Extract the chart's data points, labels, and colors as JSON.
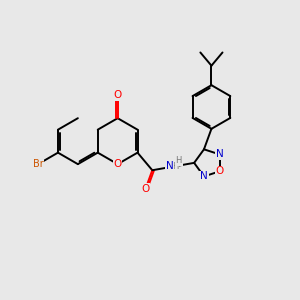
{
  "bg_color": "#e8e8e8",
  "bond_width": 1.4,
  "atom_colors": {
    "O": "#ff0000",
    "N": "#0000cd",
    "Br": "#cc5500",
    "H": "#777777",
    "C": "#000000"
  },
  "figsize": [
    3.0,
    3.0
  ],
  "dpi": 100
}
